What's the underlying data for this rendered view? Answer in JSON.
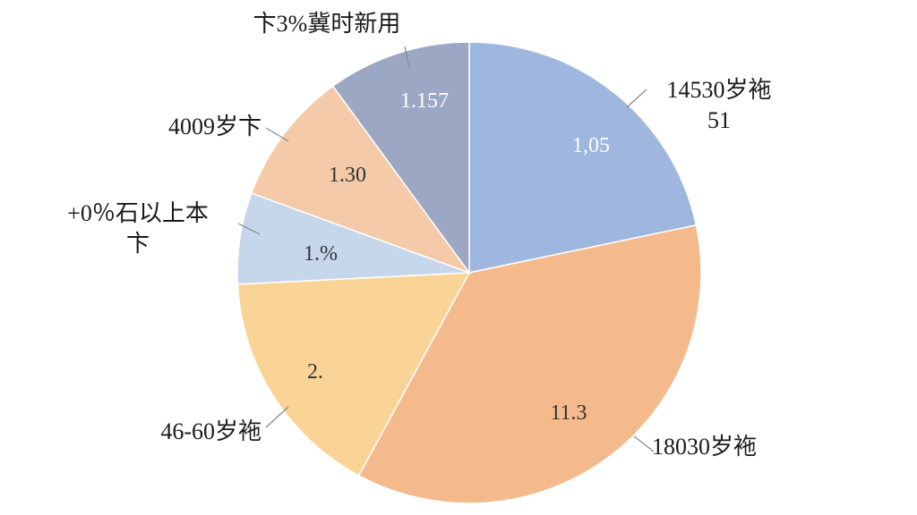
{
  "chart_data": {
    "type": "pie",
    "categories": [
      "14530岁袘\n51",
      "18030岁袘",
      "46-60岁袘",
      "+0％石以上本\n卞",
      "4009岁卞",
      "卞3%冀时新用"
    ],
    "values": [
      21.7,
      36.2,
      16.3,
      6.4,
      9.4,
      10.0
    ],
    "slice_texts": [
      "1,05",
      "11.3",
      "2.",
      "1.%",
      "1.30",
      "1.157"
    ],
    "colors": [
      "#9fb7de",
      "#f4ba8c",
      "#fad496",
      "#c6d6eb",
      "#f5caa9",
      "#9ba7c3"
    ],
    "start_angle": 0,
    "direction": "clockwise"
  }
}
